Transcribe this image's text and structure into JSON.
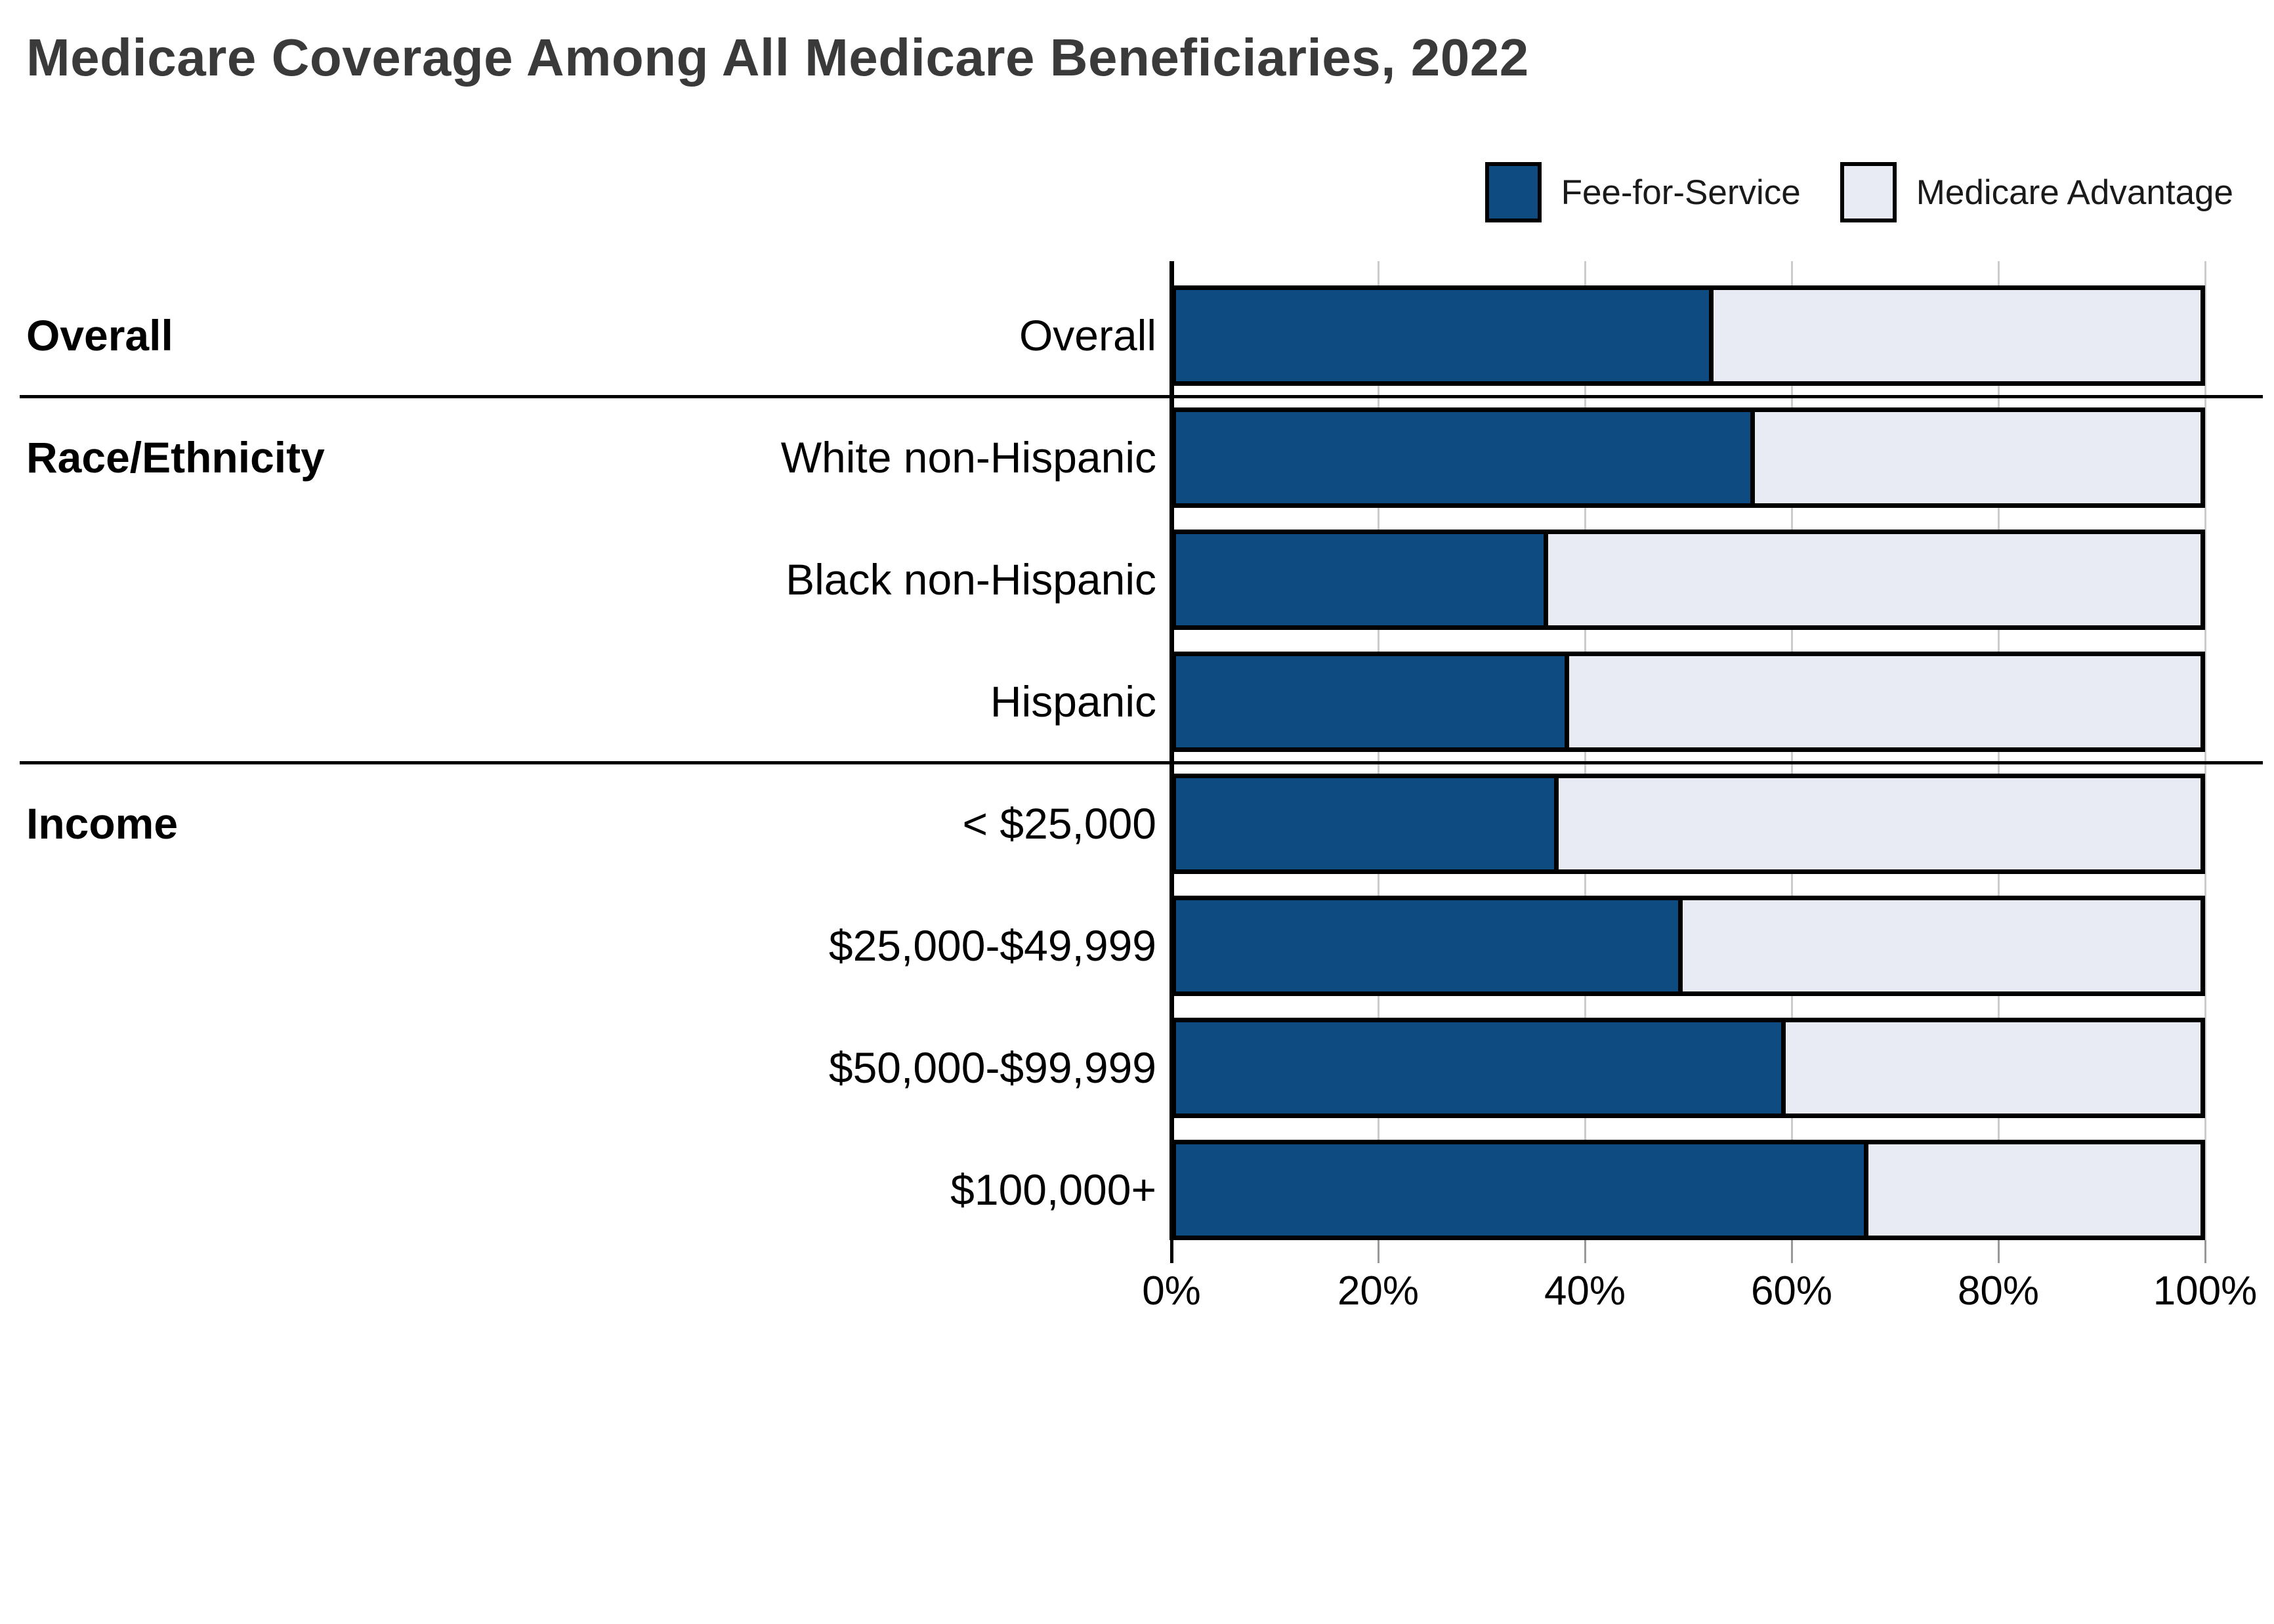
{
  "title": "Medicare Coverage Among All Medicare Beneficiaries, 2022",
  "legend": {
    "items": [
      {
        "label": "Fee-for-Service",
        "color": "#0E4B80"
      },
      {
        "label": "Medicare Advantage",
        "color": "#E8EBF3"
      }
    ]
  },
  "colors": {
    "fee_for_service": "#0E4B80",
    "medicare_advantage": "#E8EBF3",
    "bar_border": "#000000",
    "gridline": "#CCCCCC",
    "tick": "#999999",
    "axis": "#000000",
    "title_text": "#3A3A3A",
    "label_text": "#000000"
  },
  "chart_data": {
    "type": "bar",
    "orientation": "horizontal",
    "stacked": true,
    "title": "Medicare Coverage Among All Medicare Beneficiaries, 2022",
    "categories": [
      "Overall",
      "White non-Hispanic",
      "Black non-Hispanic",
      "Hispanic",
      "< $25,000",
      "$25,000-$49,999",
      "$50,000-$99,999",
      "$100,000+"
    ],
    "series": [
      {
        "name": "Fee-for-Service",
        "values": [
          52,
          56,
          36,
          38,
          37,
          49,
          59,
          67
        ]
      },
      {
        "name": "Medicare Advantage",
        "values": [
          48,
          44,
          64,
          62,
          63,
          51,
          41,
          33
        ]
      }
    ],
    "groups": [
      {
        "label": "Overall",
        "rows": [
          0
        ]
      },
      {
        "label": "Race/Ethnicity",
        "rows": [
          1,
          2,
          3
        ]
      },
      {
        "label": "Income",
        "rows": [
          4,
          5,
          6,
          7
        ]
      }
    ],
    "x_ticks": [
      {
        "label": "0%",
        "value": 0
      },
      {
        "label": "20%",
        "value": 20
      },
      {
        "label": "40%",
        "value": 40
      },
      {
        "label": "60%",
        "value": 60
      },
      {
        "label": "80%",
        "value": 80
      },
      {
        "label": "100%",
        "value": 100
      }
    ],
    "xlim": [
      0,
      100
    ],
    "grid": true,
    "legend_position": "top-right"
  }
}
